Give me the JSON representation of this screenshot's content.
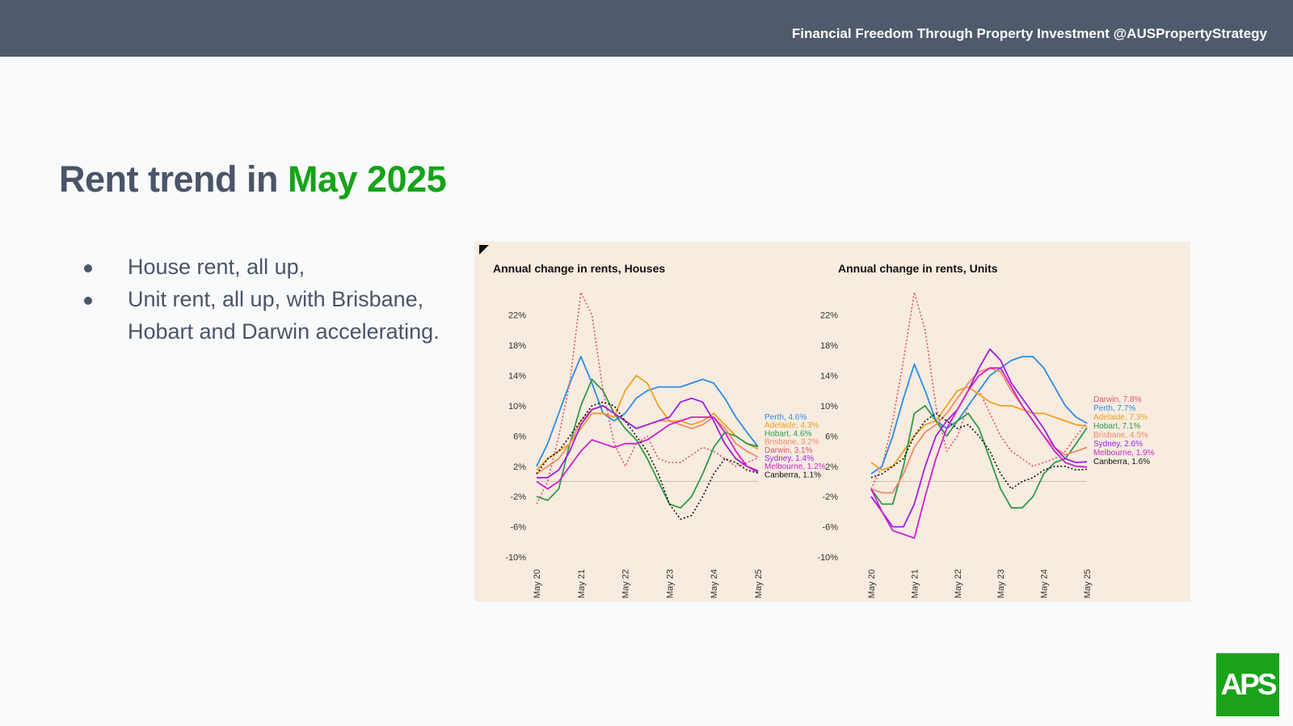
{
  "header": {
    "tagline": "Financial Freedom Through Property Investment @AUSPropertyStrategy"
  },
  "title": {
    "prefix": "Rent trend in ",
    "highlight": "May 2025"
  },
  "bullets": [
    "House rent, all up,",
    "Unit rent, all up, with Brisbane, Hobart and Darwin accelerating."
  ],
  "logo": {
    "text": "APS",
    "color": "#1aa31a"
  },
  "colors": {
    "header_bg": "#4f5b6d",
    "title_text": "#4a5568",
    "highlight": "#17a21a",
    "chart_bg": "#f7ecdf"
  },
  "chart_data": [
    {
      "type": "line",
      "title": "Annual change in rents, Houses",
      "ylim": [
        -10,
        24
      ],
      "yticks": [
        22,
        18,
        14,
        10,
        6,
        2,
        -2,
        -6,
        -10
      ],
      "ytick_labels": [
        "22%",
        "18%",
        "14%",
        "10%",
        "6%",
        "2%",
        "-2%",
        "-6%",
        "-10%"
      ],
      "x_tick_positions": [
        0,
        12,
        24,
        36,
        48,
        60
      ],
      "x_tick_labels": [
        "May 20",
        "May 21",
        "May 22",
        "May 23",
        "May 24",
        "May 25"
      ],
      "x_months": [
        0,
        3,
        6,
        9,
        12,
        15,
        18,
        21,
        24,
        27,
        30,
        33,
        36,
        39,
        42,
        45,
        48,
        51,
        54,
        57,
        60
      ],
      "series": [
        {
          "name": "Perth, 4.6%",
          "color": "#2b8ce6",
          "dash": "solid",
          "values": [
            2,
            5,
            9,
            13,
            16.5,
            13,
            9,
            8,
            9,
            11,
            12,
            12.5,
            12.5,
            12.5,
            13,
            13.5,
            13,
            11,
            8.5,
            6.5,
            4.6
          ]
        },
        {
          "name": "Adelaide, 4.3%",
          "color": "#f0a020",
          "dash": "solid",
          "values": [
            1.5,
            3,
            4,
            5,
            7,
            9,
            9,
            8.5,
            12,
            14,
            13,
            10,
            8,
            8,
            7.5,
            8,
            9,
            7.5,
            6,
            5,
            4.3
          ]
        },
        {
          "name": "Hobart, 4.6%",
          "color": "#2e9a4a",
          "dash": "solid",
          "values": [
            -2,
            -2.5,
            -1,
            5,
            10,
            13.5,
            12,
            9,
            7,
            5.5,
            3,
            0,
            -3,
            -3.5,
            -2,
            1,
            4.5,
            6.5,
            6,
            5,
            4.6
          ]
        },
        {
          "name": "Brisbane, 3.2%",
          "color": "#f08a68",
          "dash": "solid",
          "values": [
            1,
            2,
            3,
            5,
            8,
            9.5,
            10,
            9,
            8,
            7,
            7.5,
            8,
            8,
            7.5,
            7,
            7.5,
            8.5,
            7,
            5,
            4,
            3.2
          ]
        },
        {
          "name": "Darwin, 3.1%",
          "color": "#e8506a",
          "dash": "dot",
          "values": [
            -3,
            0,
            6,
            13,
            25,
            22,
            12,
            5,
            2,
            5,
            6,
            3,
            2.5,
            2.5,
            3.5,
            4.5,
            4,
            3,
            2,
            2.5,
            3.1
          ]
        },
        {
          "name": "Sydney, 1.4%",
          "color": "#a020e0",
          "dash": "solid",
          "values": [
            0.5,
            0.5,
            1.5,
            4,
            7.5,
            9.5,
            10,
            9,
            8,
            7,
            7.5,
            8,
            8.5,
            10.5,
            11,
            10.5,
            8,
            5,
            3,
            2,
            1.4
          ]
        },
        {
          "name": "Melbourne, 1.2%",
          "color": "#d020d0",
          "dash": "solid",
          "values": [
            0,
            -1,
            0,
            2,
            4,
            5.5,
            5,
            4.5,
            5,
            5,
            5.5,
            6.5,
            7.5,
            8,
            8.5,
            8.5,
            8.5,
            6.5,
            4,
            2,
            1.2
          ]
        },
        {
          "name": "Canberra, 1.1%",
          "color": "#111111",
          "dash": "dot",
          "values": [
            1,
            3,
            4,
            6,
            8,
            10,
            10.5,
            10,
            8,
            6,
            4,
            1,
            -3,
            -5,
            -4.5,
            -2,
            1,
            3,
            2.5,
            1.5,
            1.1
          ]
        }
      ]
    },
    {
      "type": "line",
      "title": "Annual change in rents, Units",
      "ylim": [
        -10,
        24
      ],
      "yticks": [
        22,
        18,
        14,
        10,
        6,
        2,
        -2,
        -6,
        -10
      ],
      "ytick_labels": [
        "22%",
        "18%",
        "14%",
        "10%",
        "6%",
        "2%",
        "-2%",
        "-6%",
        "-10%"
      ],
      "x_tick_positions": [
        0,
        12,
        24,
        36,
        48,
        60
      ],
      "x_tick_labels": [
        "May 20",
        "May 21",
        "May 22",
        "May 23",
        "May 24",
        "May 25"
      ],
      "x_months": [
        0,
        3,
        6,
        9,
        12,
        15,
        18,
        21,
        24,
        27,
        30,
        33,
        36,
        39,
        42,
        45,
        48,
        51,
        54,
        57,
        60
      ],
      "series": [
        {
          "name": "Darwin, 7.8%",
          "color": "#e8506a",
          "dash": "dot",
          "values": [
            -1,
            2,
            8,
            16,
            25,
            20,
            10,
            4,
            6,
            10,
            12,
            9,
            6,
            4,
            3,
            2,
            2.5,
            3,
            4,
            6,
            7.8
          ]
        },
        {
          "name": "Perth, 7.7%",
          "color": "#2b8ce6",
          "dash": "solid",
          "values": [
            1,
            2,
            6,
            11,
            15.5,
            12,
            8,
            7,
            8,
            10,
            12,
            14,
            15,
            16,
            16.5,
            16.5,
            15,
            12.5,
            10,
            8.5,
            7.7
          ]
        },
        {
          "name": "Adelaide, 7.3%",
          "color": "#f0a020",
          "dash": "solid",
          "values": [
            2.5,
            1.5,
            2,
            4,
            6,
            7.5,
            8,
            10,
            12,
            12.5,
            11.5,
            10.5,
            10,
            10,
            9.5,
            9,
            9,
            8.5,
            8,
            7.5,
            7.3
          ]
        },
        {
          "name": "Hobart, 7.1%",
          "color": "#2e9a4a",
          "dash": "solid",
          "values": [
            -1,
            -3,
            -3,
            2,
            9,
            10,
            8,
            6,
            8,
            9,
            7,
            3,
            -1,
            -3.5,
            -3.5,
            -2,
            1,
            2.5,
            3,
            5,
            7.1
          ]
        },
        {
          "name": "Brisbane, 4.5%",
          "color": "#f08a68",
          "dash": "solid",
          "values": [
            -1,
            -1.5,
            -1.5,
            1,
            4.5,
            6.5,
            7.5,
            9,
            11,
            13,
            14.5,
            15,
            14.5,
            12,
            10,
            8,
            6,
            4.5,
            3.5,
            4,
            4.5
          ]
        },
        {
          "name": "Sydney, 2.6%",
          "color": "#a020e0",
          "dash": "solid",
          "values": [
            -2,
            -4,
            -6,
            -6,
            -3,
            2,
            6,
            8,
            9.5,
            12,
            15,
            17.5,
            16,
            13,
            11,
            9,
            7,
            4.5,
            3,
            2.5,
            2.6
          ]
        },
        {
          "name": "Melbourne, 1.9%",
          "color": "#d020d0",
          "dash": "solid",
          "values": [
            -1,
            -4,
            -6.5,
            -7,
            -7.5,
            -2,
            3,
            7,
            9.5,
            12,
            14,
            15,
            15,
            12.5,
            10,
            8,
            6,
            4,
            2.5,
            2,
            1.9
          ]
        },
        {
          "name": "Canberra, 1.6%",
          "color": "#111111",
          "dash": "dot",
          "values": [
            0.5,
            1,
            2,
            3,
            6,
            8,
            9,
            8,
            7,
            7.5,
            6,
            4,
            1,
            -1,
            0,
            0.5,
            1.5,
            2,
            2,
            1.5,
            1.6
          ]
        }
      ]
    }
  ]
}
